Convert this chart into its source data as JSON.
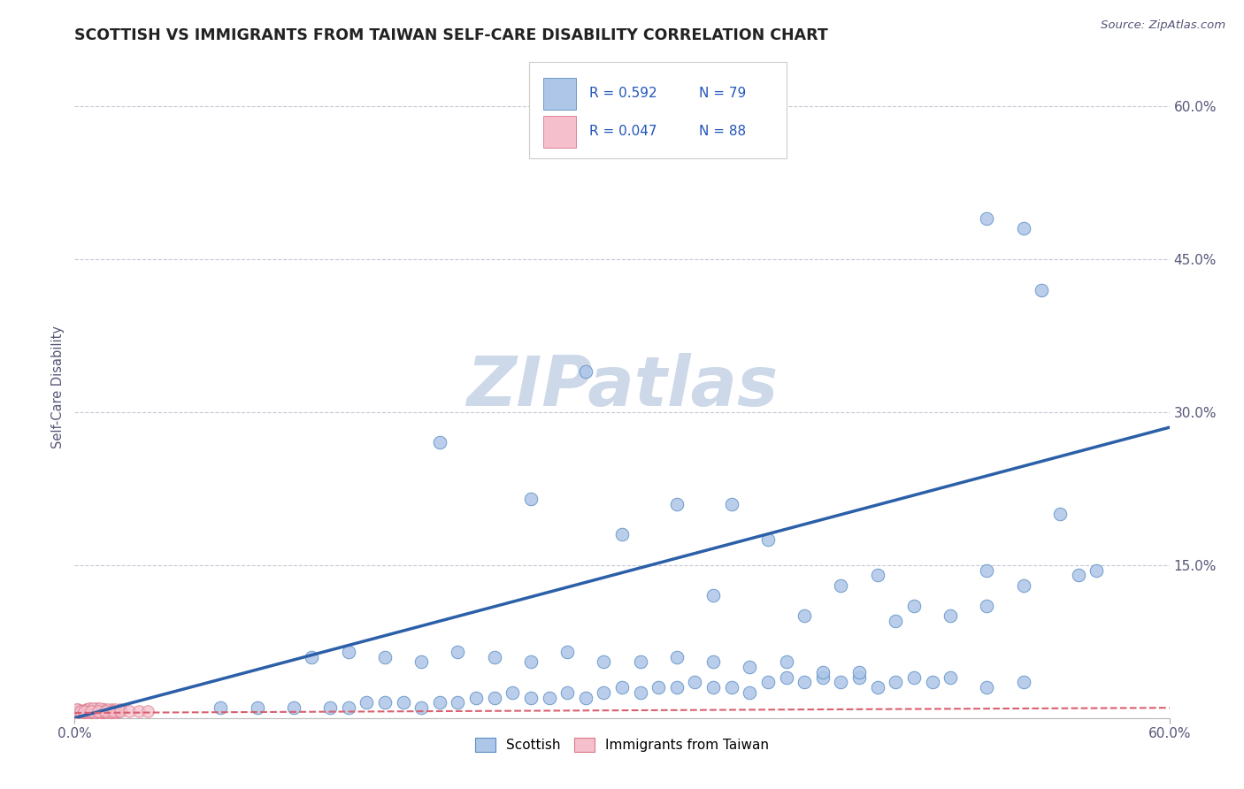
{
  "title": "SCOTTISH VS IMMIGRANTS FROM TAIWAN SELF-CARE DISABILITY CORRELATION CHART",
  "source": "Source: ZipAtlas.com",
  "ylabel": "Self-Care Disability",
  "xlim": [
    0.0,
    0.6
  ],
  "ylim": [
    0.0,
    0.65
  ],
  "ytick_right_vals": [
    0.0,
    0.15,
    0.3,
    0.45,
    0.6
  ],
  "ytick_right_labels": [
    "",
    "15.0%",
    "30.0%",
    "45.0%",
    "60.0%"
  ],
  "legend_r1": "R = 0.592",
  "legend_n1": "N = 79",
  "legend_r2": "R = 0.047",
  "legend_n2": "N = 88",
  "scatter_blue_color": "#aec6e8",
  "scatter_blue_edge": "#5b8ec4",
  "scatter_pink_color": "#f5bfcc",
  "scatter_pink_edge": "#d9788a",
  "line_blue_color": "#2b5fa8",
  "line_pink_color": "#d96070",
  "background_color": "#ffffff",
  "grid_color": "#c8c8d8",
  "watermark_color": "#cdd8e8",
  "title_fontsize": 12.5,
  "blue_line_x": [
    0.0,
    0.6
  ],
  "blue_line_y": [
    0.0,
    0.285
  ],
  "pink_line_x": [
    0.0,
    0.6
  ],
  "pink_line_y": [
    0.005,
    0.01
  ],
  "blue_x": [
    0.08,
    0.1,
    0.12,
    0.14,
    0.15,
    0.16,
    0.17,
    0.18,
    0.19,
    0.2,
    0.21,
    0.22,
    0.23,
    0.24,
    0.25,
    0.26,
    0.27,
    0.28,
    0.29,
    0.3,
    0.31,
    0.32,
    0.33,
    0.34,
    0.35,
    0.36,
    0.37,
    0.38,
    0.39,
    0.4,
    0.41,
    0.42,
    0.43,
    0.44,
    0.45,
    0.46,
    0.47,
    0.48,
    0.5,
    0.52,
    0.13,
    0.15,
    0.17,
    0.19,
    0.21,
    0.23,
    0.25,
    0.27,
    0.29,
    0.31,
    0.33,
    0.35,
    0.37,
    0.39,
    0.41,
    0.43,
    0.35,
    0.4,
    0.45,
    0.5,
    0.2,
    0.25,
    0.3,
    0.28,
    0.33,
    0.36,
    0.38,
    0.42,
    0.44,
    0.46,
    0.48,
    0.5,
    0.52,
    0.55,
    0.54,
    0.52,
    0.5,
    0.56,
    0.53
  ],
  "blue_y": [
    0.01,
    0.01,
    0.01,
    0.01,
    0.01,
    0.015,
    0.015,
    0.015,
    0.01,
    0.015,
    0.015,
    0.02,
    0.02,
    0.025,
    0.02,
    0.02,
    0.025,
    0.02,
    0.025,
    0.03,
    0.025,
    0.03,
    0.03,
    0.035,
    0.03,
    0.03,
    0.025,
    0.035,
    0.04,
    0.035,
    0.04,
    0.035,
    0.04,
    0.03,
    0.035,
    0.04,
    0.035,
    0.04,
    0.03,
    0.035,
    0.06,
    0.065,
    0.06,
    0.055,
    0.065,
    0.06,
    0.055,
    0.065,
    0.055,
    0.055,
    0.06,
    0.055,
    0.05,
    0.055,
    0.045,
    0.045,
    0.12,
    0.1,
    0.095,
    0.11,
    0.27,
    0.215,
    0.18,
    0.34,
    0.21,
    0.21,
    0.175,
    0.13,
    0.14,
    0.11,
    0.1,
    0.145,
    0.13,
    0.14,
    0.2,
    0.48,
    0.49,
    0.145,
    0.42
  ],
  "pink_x": [
    0.001,
    0.002,
    0.003,
    0.004,
    0.005,
    0.006,
    0.007,
    0.008,
    0.009,
    0.01,
    0.011,
    0.012,
    0.013,
    0.014,
    0.015,
    0.016,
    0.017,
    0.018,
    0.019,
    0.02,
    0.021,
    0.022,
    0.002,
    0.004,
    0.006,
    0.008,
    0.01,
    0.012,
    0.014,
    0.016,
    0.003,
    0.005,
    0.007,
    0.009,
    0.011,
    0.013,
    0.001,
    0.002,
    0.003,
    0.004,
    0.005,
    0.006,
    0.007,
    0.008,
    0.009,
    0.01,
    0.011,
    0.012,
    0.013,
    0.014,
    0.015,
    0.016,
    0.017,
    0.018,
    0.019,
    0.02,
    0.021,
    0.022,
    0.023,
    0.024,
    0.001,
    0.003,
    0.005,
    0.007,
    0.009,
    0.011,
    0.013,
    0.015,
    0.017,
    0.019,
    0.008,
    0.012,
    0.016,
    0.02,
    0.025,
    0.01,
    0.014,
    0.018,
    0.022,
    0.005,
    0.009,
    0.013,
    0.017,
    0.021,
    0.025,
    0.03,
    0.035,
    0.04
  ],
  "pink_y": [
    0.005,
    0.006,
    0.005,
    0.007,
    0.006,
    0.005,
    0.007,
    0.006,
    0.005,
    0.007,
    0.006,
    0.005,
    0.006,
    0.007,
    0.006,
    0.005,
    0.006,
    0.007,
    0.006,
    0.005,
    0.007,
    0.006,
    0.008,
    0.007,
    0.008,
    0.006,
    0.007,
    0.006,
    0.007,
    0.008,
    0.005,
    0.006,
    0.007,
    0.006,
    0.007,
    0.006,
    0.005,
    0.006,
    0.007,
    0.005,
    0.006,
    0.007,
    0.005,
    0.006,
    0.007,
    0.006,
    0.005,
    0.007,
    0.006,
    0.005,
    0.006,
    0.007,
    0.006,
    0.005,
    0.006,
    0.007,
    0.006,
    0.005,
    0.006,
    0.007,
    0.008,
    0.007,
    0.006,
    0.008,
    0.007,
    0.006,
    0.007,
    0.008,
    0.007,
    0.006,
    0.009,
    0.009,
    0.008,
    0.008,
    0.008,
    0.009,
    0.009,
    0.008,
    0.008,
    0.007,
    0.007,
    0.007,
    0.007,
    0.007,
    0.007,
    0.007,
    0.007,
    0.007
  ]
}
